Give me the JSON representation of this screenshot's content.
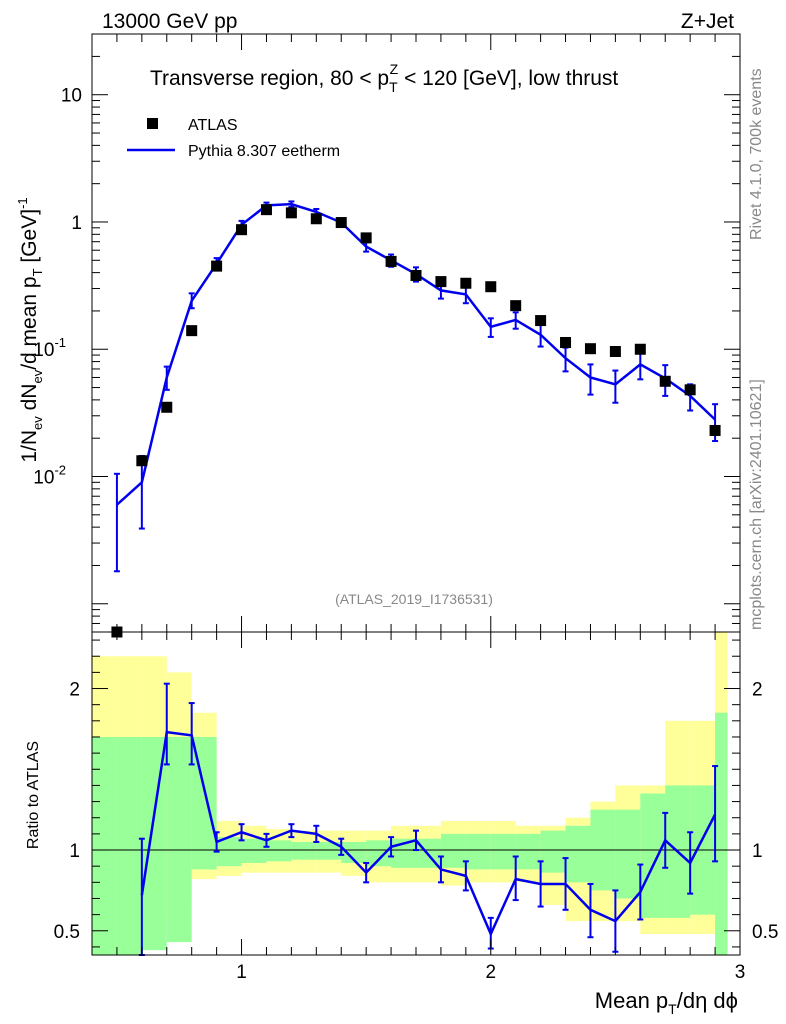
{
  "header": {
    "left": "13000 GeV pp",
    "right": "Z+Jet"
  },
  "plot_title": {
    "part1": "Transverse region, 80 < p",
    "sup": "Z",
    "sub": "T",
    "part2": " < 120 [GeV], low thrust"
  },
  "side_labels": {
    "rivet": "Rivet 4.1.0,  700k events",
    "mcplots": "mcplots.cern.ch [arXiv:2401.10621]"
  },
  "watermark": "(ATLAS_2019_I1736531)",
  "legend": {
    "data_label": "ATLAS",
    "mc_label": "Pythia 8.307 eetherm"
  },
  "axes": {
    "y_main_label": "1/N_ev dN_ev/d mean p_T [GeV]^-1",
    "y_main_parts": {
      "a": "1/N",
      "a_sub": "ev",
      "b": " dN",
      "b_sub": "ev",
      "c": "/d mean p",
      "c_sub": "T",
      "d": " [GeV]",
      "d_sup": "-1"
    },
    "y_ratio_label": "Ratio to ATLAS",
    "x_label": "Mean p_T/dη dϕ",
    "x_parts": {
      "a": "Mean p",
      "a_sub": "T",
      "b": "/dη dϕ"
    },
    "x_ticks": [
      "1",
      "2",
      "3"
    ],
    "y_main_ticks": [
      {
        "base": "10",
        "exp": "-2",
        "value": 0.01
      },
      {
        "base": "10",
        "exp": "-1",
        "value": 0.1
      },
      {
        "base": "1",
        "exp": "",
        "value": 1
      },
      {
        "base": "10",
        "exp": "",
        "value": 10
      }
    ],
    "y_ratio_ticks": [
      "0.5",
      "1",
      "2"
    ]
  },
  "colors": {
    "mc_line": "#0000ee",
    "band_outer": "#ffff99",
    "band_inner": "#99ff99",
    "data_marker": "#000000"
  },
  "chart_data": {
    "type": "line",
    "title": "Transverse region, 80 < pT^Z < 120 [GeV], low thrust",
    "xlabel": "Mean pT/dη dϕ",
    "ylabel": "1/Nev dNev/d mean pT [GeV]^-1",
    "xlim": [
      0.4,
      3.0
    ],
    "ylim": [
      0.0006,
      30
    ],
    "yscale": "log",
    "ratio_ylim": [
      0.35,
      2.35
    ],
    "bin_edges": [
      0.4,
      0.5,
      0.6,
      0.7,
      0.8,
      0.9,
      1.0,
      1.1,
      1.2,
      1.3,
      1.4,
      1.5,
      1.6,
      1.7,
      1.8,
      1.9,
      2.0,
      2.1,
      2.2,
      2.3,
      2.4,
      2.5,
      2.6,
      2.7,
      2.8,
      2.9,
      2.95
    ],
    "series": [
      {
        "name": "ATLAS",
        "type": "markers",
        "x": [
          0.5,
          0.6,
          0.7,
          0.8,
          0.9,
          1.0,
          1.1,
          1.2,
          1.3,
          1.4,
          1.5,
          1.6,
          1.7,
          1.8,
          1.9,
          2.0,
          2.1,
          2.2,
          2.3,
          2.4,
          2.5,
          2.6,
          2.7,
          2.8,
          2.9
        ],
        "values": [
          0.0006,
          0.0133,
          0.035,
          0.14,
          0.45,
          0.87,
          1.25,
          1.18,
          1.06,
          0.99,
          0.75,
          0.49,
          0.38,
          0.34,
          0.33,
          0.31,
          0.22,
          0.168,
          0.113,
          0.101,
          0.096,
          0.1,
          0.056,
          0.048,
          0.023
        ]
      },
      {
        "name": "Pythia 8.307 eetherm",
        "type": "line",
        "x": [
          0.5,
          0.6,
          0.7,
          0.8,
          0.9,
          1.0,
          1.1,
          1.2,
          1.3,
          1.4,
          1.5,
          1.6,
          1.7,
          1.8,
          1.9,
          2.0,
          2.1,
          2.2,
          2.3,
          2.4,
          2.5,
          2.6,
          2.7,
          2.8,
          2.9
        ],
        "values": [
          0.006,
          0.009,
          0.06,
          0.24,
          0.47,
          0.95,
          1.35,
          1.38,
          1.2,
          0.99,
          0.64,
          0.5,
          0.39,
          0.29,
          0.27,
          0.15,
          0.17,
          0.13,
          0.085,
          0.06,
          0.053,
          0.076,
          0.059,
          0.043,
          0.028
        ],
        "err_lo": [
          0.0042,
          0.0051,
          0.012,
          0.03,
          0.045,
          0.07,
          0.07,
          0.07,
          0.065,
          0.055,
          0.055,
          0.055,
          0.05,
          0.04,
          0.04,
          0.025,
          0.025,
          0.025,
          0.018,
          0.016,
          0.015,
          0.018,
          0.016,
          0.01,
          0.009
        ],
        "err_hi": [
          0.0045,
          0.0055,
          0.013,
          0.035,
          0.05,
          0.07,
          0.07,
          0.07,
          0.065,
          0.055,
          0.055,
          0.055,
          0.05,
          0.04,
          0.04,
          0.025,
          0.025,
          0.025,
          0.018,
          0.016,
          0.015,
          0.018,
          0.016,
          0.01,
          0.009
        ]
      }
    ],
    "ratio": {
      "x": [
        0.6,
        0.7,
        0.8,
        0.9,
        1.0,
        1.1,
        1.2,
        1.3,
        1.4,
        1.5,
        1.6,
        1.7,
        1.8,
        1.9,
        2.0,
        2.1,
        2.2,
        2.3,
        2.4,
        2.5,
        2.6,
        2.7,
        2.8,
        2.9
      ],
      "values": [
        0.72,
        1.73,
        1.71,
        1.05,
        1.11,
        1.06,
        1.12,
        1.1,
        1.02,
        0.86,
        1.02,
        1.06,
        0.88,
        0.84,
        0.48,
        0.82,
        0.79,
        0.79,
        0.63,
        0.56,
        0.74,
        1.06,
        0.92,
        1.22
      ],
      "err_lo": [
        0.4,
        0.2,
        0.18,
        0.06,
        0.05,
        0.04,
        0.04,
        0.05,
        0.05,
        0.06,
        0.06,
        0.06,
        0.08,
        0.09,
        0.09,
        0.13,
        0.14,
        0.16,
        0.17,
        0.19,
        0.17,
        0.17,
        0.19,
        0.29
      ],
      "err_hi": [
        0.35,
        0.3,
        0.2,
        0.06,
        0.05,
        0.04,
        0.04,
        0.05,
        0.05,
        0.06,
        0.06,
        0.06,
        0.08,
        0.09,
        0.1,
        0.14,
        0.14,
        0.16,
        0.16,
        0.19,
        0.17,
        0.17,
        0.19,
        0.3
      ],
      "band_outer_lo": [
        0.3,
        0.3,
        0.6,
        0.68,
        0.82,
        0.84,
        0.86,
        0.86,
        0.86,
        0.86,
        0.84,
        0.8,
        0.8,
        0.8,
        0.78,
        0.8,
        0.8,
        0.8,
        0.66,
        0.56,
        0.56,
        0.56,
        0.48,
        0.48,
        0.48,
        0.3
      ],
      "band_outer_hi": [
        2.2,
        2.2,
        2.2,
        2.1,
        1.85,
        1.18,
        1.15,
        1.13,
        1.12,
        1.12,
        1.12,
        1.12,
        1.15,
        1.15,
        1.18,
        1.18,
        1.18,
        1.15,
        1.15,
        1.2,
        1.3,
        1.4,
        1.4,
        1.8,
        1.8,
        2.4
      ],
      "band_inner_lo": [
        0.3,
        0.3,
        0.38,
        0.43,
        0.88,
        0.9,
        0.92,
        0.93,
        0.94,
        0.94,
        0.92,
        0.9,
        0.89,
        0.89,
        0.89,
        0.88,
        0.88,
        0.88,
        0.86,
        0.8,
        0.75,
        0.7,
        0.58,
        0.58,
        0.6,
        0.35
      ],
      "band_inner_hi": [
        1.7,
        1.7,
        1.7,
        1.7,
        1.7,
        1.08,
        1.07,
        1.06,
        1.05,
        1.05,
        1.05,
        1.06,
        1.07,
        1.07,
        1.1,
        1.1,
        1.1,
        1.1,
        1.12,
        1.15,
        1.25,
        1.25,
        1.35,
        1.4,
        1.4,
        1.85
      ]
    }
  }
}
